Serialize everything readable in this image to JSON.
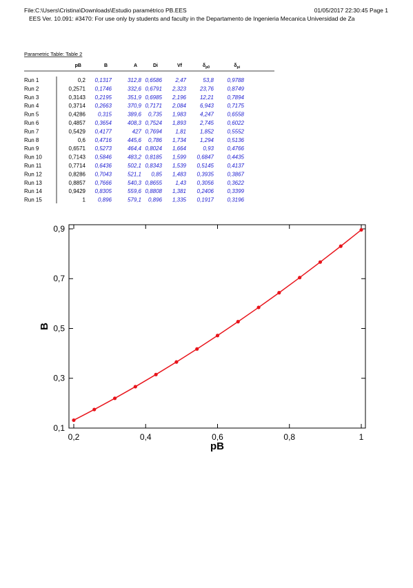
{
  "header": {
    "file": "File:C:\\Users\\Cristina\\Downloads\\Estudio paramétrico PB.EES",
    "date": "01/05/2017 22:30:45  Page 1",
    "license": "EES Ver. 10.091: #3470:  For use only by students and faculty in the Departamento de Ingenieria Mecanica Universidad de Za"
  },
  "table": {
    "title": "Parametric Table: Table 2",
    "columns": [
      {
        "text": "pB"
      },
      {
        "text": "B"
      },
      {
        "text": "A"
      },
      {
        "text": "Di"
      },
      {
        "text": "Vf"
      },
      {
        "text": "δ",
        "sub": "p0"
      },
      {
        "text": "δ",
        "sub": "pi"
      }
    ],
    "rows": [
      [
        "Run 1",
        "0,2",
        "0,1317",
        "312,8",
        "0,6586",
        "2,47",
        "53,8",
        "0,9788"
      ],
      [
        "Run 2",
        "0,2571",
        "0,1746",
        "332,6",
        "0,6791",
        "2,323",
        "23,76",
        "0,8749"
      ],
      [
        "Run 3",
        "0,3143",
        "0,2195",
        "351,9",
        "0,6985",
        "2,196",
        "12,21",
        "0,7894"
      ],
      [
        "Run 4",
        "0,3714",
        "0,2663",
        "370,9",
        "0,7171",
        "2,084",
        "6,943",
        "0,7175"
      ],
      [
        "Run 5",
        "0,4286",
        "0,315",
        "389,6",
        "0,735",
        "1,983",
        "4,247",
        "0,6558"
      ],
      [
        "Run 6",
        "0,4857",
        "0,3654",
        "408,3",
        "0,7524",
        "1,893",
        "2,745",
        "0,6022"
      ],
      [
        "Run 7",
        "0,5429",
        "0,4177",
        "427",
        "0,7694",
        "1,81",
        "1,852",
        "0,5552"
      ],
      [
        "Run 8",
        "0,6",
        "0,4716",
        "445,6",
        "0,786",
        "1,734",
        "1,294",
        "0,5136"
      ],
      [
        "Run 9",
        "0,6571",
        "0,5273",
        "464,4",
        "0,8024",
        "1,664",
        "0,93",
        "0,4766"
      ],
      [
        "Run 10",
        "0,7143",
        "0,5846",
        "483,2",
        "0,8185",
        "1,599",
        "0,6847",
        "0,4435"
      ],
      [
        "Run 11",
        "0,7714",
        "0,6436",
        "502,1",
        "0,8343",
        "1,539",
        "0,5145",
        "0,4137"
      ],
      [
        "Run 12",
        "0,8286",
        "0,7043",
        "521,1",
        "0,85",
        "1,483",
        "0,3935",
        "0,3867"
      ],
      [
        "Run 13",
        "0,8857",
        "0,7666",
        "540,3",
        "0,8655",
        "1,43",
        "0,3056",
        "0,3622"
      ],
      [
        "Run 14",
        "0,9429",
        "0,8305",
        "559,6",
        "0,8808",
        "1,381",
        "0,2406",
        "0,3399"
      ],
      [
        "Run 15",
        "1",
        "0,896",
        "579,1",
        "0,896",
        "1,335",
        "0,1917",
        "0,3196"
      ]
    ]
  },
  "chart_data": {
    "type": "line",
    "x_label": "pB",
    "y_label": "B",
    "x": [
      0.2,
      0.2571,
      0.3143,
      0.3714,
      0.4286,
      0.4857,
      0.5429,
      0.6,
      0.6571,
      0.7143,
      0.7714,
      0.8286,
      0.8857,
      0.9429,
      1
    ],
    "series": [
      {
        "color": "#e8141b",
        "values": [
          0.1317,
          0.1746,
          0.2195,
          0.2663,
          0.315,
          0.3654,
          0.4177,
          0.4716,
          0.5273,
          0.5846,
          0.6436,
          0.7043,
          0.7666,
          0.8305,
          0.896
        ]
      }
    ],
    "xlim": [
      0.1866,
      1.0115
    ],
    "ylim": [
      0.1,
      0.9166
    ],
    "xticks": [
      {
        "value": 0.2,
        "label": "0,2"
      },
      {
        "value": 0.4,
        "label": "0,4"
      },
      {
        "value": 0.6,
        "label": "0,6"
      },
      {
        "value": 0.8,
        "label": "0,8"
      },
      1
    ],
    "yticks": [
      {
        "value": 0.1,
        "label": "0,1"
      },
      {
        "value": 0.3,
        "label": "0,3"
      },
      {
        "value": 0.5,
        "label": "0,5"
      },
      {
        "value": 0.7,
        "label": "0,7"
      },
      {
        "value": 0.9,
        "label": "0,9"
      }
    ]
  }
}
